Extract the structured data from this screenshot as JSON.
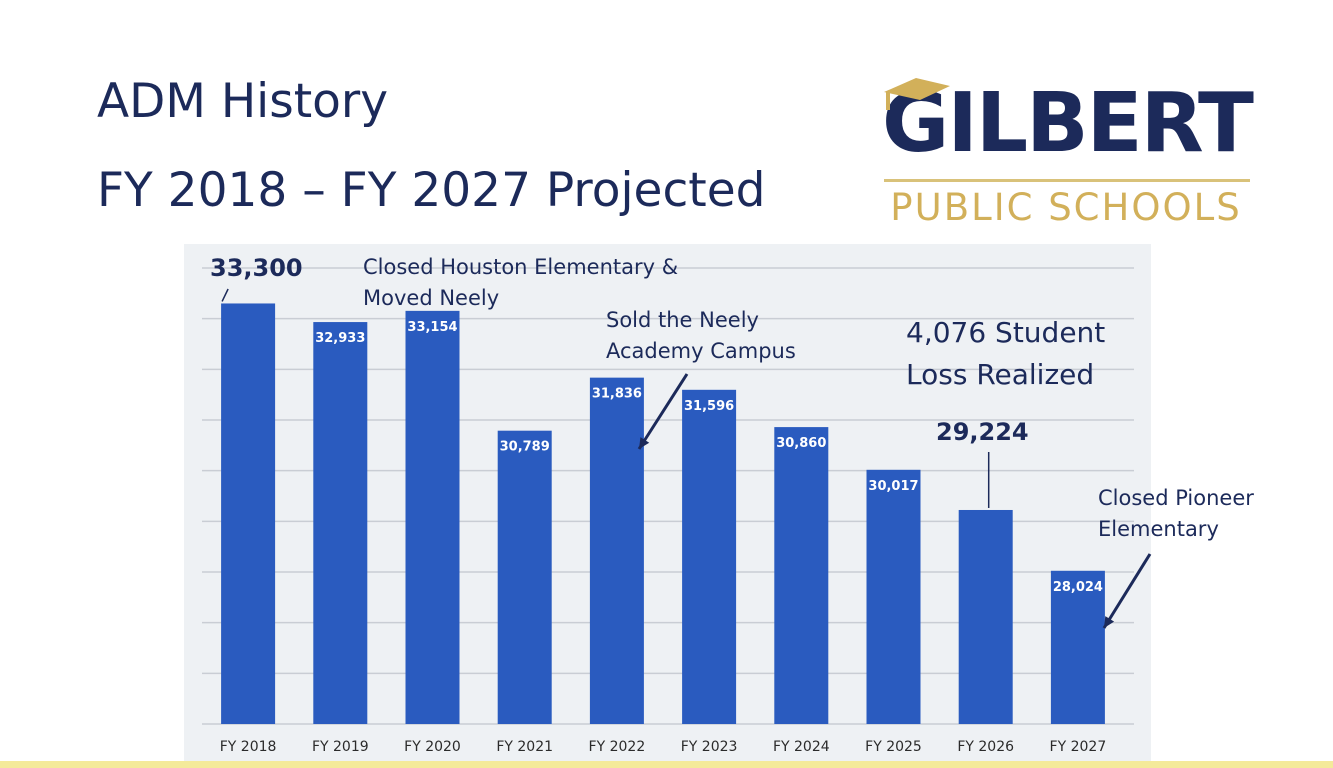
{
  "header": {
    "title_line1": "ADM History",
    "title_line2": "FY 2018 – FY 2027 Projected"
  },
  "logo": {
    "name": "GILBERT",
    "subtitle": "PUBLIC SCHOOLS",
    "icon": "graduation-cap-icon",
    "primary_color": "#1c2a5a",
    "accent_color": "#d2b05a"
  },
  "annotations": {
    "houston": [
      "Closed Houston Elementary &",
      "Moved Neely"
    ],
    "neely": [
      "Sold the Neely",
      "Academy Campus"
    ],
    "loss": [
      "4,076 Student",
      "Loss Realized"
    ],
    "pioneer": [
      "Closed Pioneer",
      "Elementary"
    ]
  },
  "chart_data": {
    "type": "bar",
    "categories": [
      "FY 2018",
      "FY 2019",
      "FY 2020",
      "FY 2021",
      "FY 2022",
      "FY 2023",
      "FY 2024",
      "FY 2025",
      "FY 2026",
      "FY 2027"
    ],
    "values": [
      33300,
      32933,
      33154,
      30789,
      31836,
      31596,
      30860,
      30017,
      29224,
      28024
    ],
    "data_labels": [
      "",
      "32,933",
      "33,154",
      "30,789",
      "31,836",
      "31,596",
      "30,860",
      "30,017",
      "",
      "28,024"
    ],
    "callout_labels": {
      "FY 2018": "33,300",
      "FY 2026": "29,224"
    },
    "ylim": [
      25000,
      34000
    ],
    "grid": true,
    "bar_color": "#2a5bbf"
  }
}
